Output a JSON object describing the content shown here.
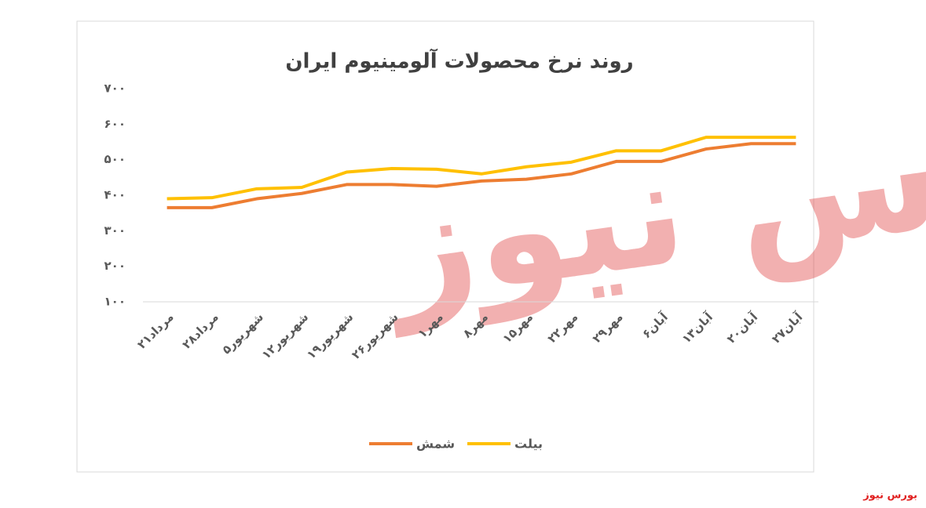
{
  "chart_data": {
    "type": "line",
    "title": "روند نرخ محصولات آلومینیوم ایران",
    "categories": [
      "۲۱مرداد",
      "۲۸مرداد",
      "۵شهریور",
      "۱۲شهریور",
      "۱۹شهریور",
      "۲۶شهریور",
      "۱مهر",
      "۸مهر",
      "۱۵مهر",
      "۲۲مهر",
      "۲۹مهر",
      "۶آبان",
      "۱۳آبان",
      "۲۰آبان",
      "۲۷آبان"
    ],
    "series": [
      {
        "name": "شمش",
        "color": "#ed7d31",
        "values": [
          365,
          365,
          390,
          405,
          430,
          430,
          425,
          440,
          445,
          460,
          495,
          495,
          530,
          545,
          545
        ]
      },
      {
        "name": "بیلت",
        "color": "#ffc000",
        "values": [
          390,
          393,
          418,
          422,
          465,
          475,
          473,
          460,
          480,
          493,
          525,
          525,
          563,
          563,
          563
        ]
      }
    ],
    "ylim": [
      100,
      700
    ],
    "yticks": [
      {
        "value": 100,
        "label": "۱۰۰"
      },
      {
        "value": 200,
        "label": "۲۰۰"
      },
      {
        "value": 300,
        "label": "۳۰۰"
      },
      {
        "value": 400,
        "label": "۴۰۰"
      },
      {
        "value": 500,
        "label": "۵۰۰"
      },
      {
        "value": 600,
        "label": "۶۰۰"
      },
      {
        "value": 700,
        "label": "۷۰۰"
      }
    ],
    "grid": false,
    "legend": "bottom"
  },
  "watermark": "بورس نیوز",
  "footer": "بورس نیوز"
}
